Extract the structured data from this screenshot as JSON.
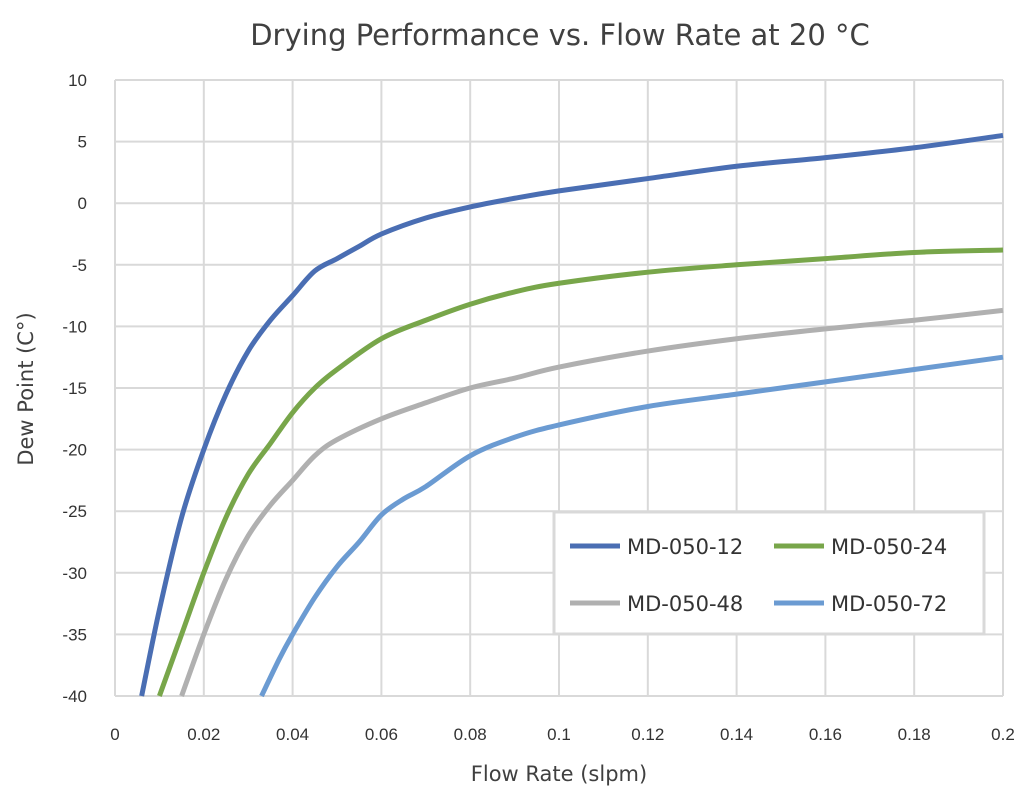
{
  "chart_data": {
    "type": "line",
    "title": "Drying Performance vs. Flow Rate at 20 °C",
    "xlabel": "Flow Rate (slpm)",
    "ylabel": "Dew Point (C°)",
    "xlim": [
      0,
      0.2
    ],
    "ylim": [
      -40,
      10
    ],
    "x_ticks": [
      0,
      0.02,
      0.04,
      0.06,
      0.08,
      0.1,
      0.12,
      0.14,
      0.16,
      0.18,
      0.2
    ],
    "x_tick_labels": [
      "0",
      "0.02",
      "0.04",
      "0.06",
      "0.08",
      "0.1",
      "0.12",
      "0.14",
      "0.16",
      "0.18",
      "0.2"
    ],
    "y_ticks": [
      10,
      5,
      0,
      -5,
      -10,
      -15,
      -20,
      -25,
      -30,
      -35,
      -40
    ],
    "y_tick_labels": [
      "10",
      "5",
      "0",
      "-5",
      "-10",
      "-15",
      "-20",
      "-25",
      "-30",
      "-35",
      "-40"
    ],
    "grid": true,
    "legend_position": "bottom-right",
    "series": [
      {
        "name": "MD-050-12",
        "color": "#4a6eb3",
        "points": [
          [
            0.006,
            -40
          ],
          [
            0.01,
            -33
          ],
          [
            0.015,
            -25.5
          ],
          [
            0.02,
            -20
          ],
          [
            0.025,
            -15.5
          ],
          [
            0.03,
            -12
          ],
          [
            0.035,
            -9.5
          ],
          [
            0.04,
            -7.5
          ],
          [
            0.045,
            -5.5
          ],
          [
            0.05,
            -4.5
          ],
          [
            0.055,
            -3.5
          ],
          [
            0.06,
            -2.5
          ],
          [
            0.07,
            -1.2
          ],
          [
            0.08,
            -0.3
          ],
          [
            0.09,
            0.4
          ],
          [
            0.1,
            1.0
          ],
          [
            0.12,
            2.0
          ],
          [
            0.14,
            3.0
          ],
          [
            0.16,
            3.7
          ],
          [
            0.18,
            4.5
          ],
          [
            0.2,
            5.5
          ]
        ]
      },
      {
        "name": "MD-050-24",
        "color": "#78a64a",
        "points": [
          [
            0.01,
            -40
          ],
          [
            0.015,
            -35
          ],
          [
            0.02,
            -30
          ],
          [
            0.025,
            -25.5
          ],
          [
            0.03,
            -22
          ],
          [
            0.035,
            -19.5
          ],
          [
            0.04,
            -17
          ],
          [
            0.045,
            -15
          ],
          [
            0.05,
            -13.5
          ],
          [
            0.06,
            -11
          ],
          [
            0.07,
            -9.5
          ],
          [
            0.08,
            -8.2
          ],
          [
            0.09,
            -7.2
          ],
          [
            0.1,
            -6.5
          ],
          [
            0.12,
            -5.6
          ],
          [
            0.14,
            -5.0
          ],
          [
            0.16,
            -4.5
          ],
          [
            0.18,
            -4.0
          ],
          [
            0.2,
            -3.8
          ]
        ]
      },
      {
        "name": "MD-050-48",
        "color": "#b0b0b0",
        "points": [
          [
            0.015,
            -40
          ],
          [
            0.02,
            -35
          ],
          [
            0.025,
            -30.5
          ],
          [
            0.03,
            -27
          ],
          [
            0.035,
            -24.5
          ],
          [
            0.04,
            -22.5
          ],
          [
            0.045,
            -20.5
          ],
          [
            0.05,
            -19.2
          ],
          [
            0.06,
            -17.5
          ],
          [
            0.07,
            -16.2
          ],
          [
            0.08,
            -15.0
          ],
          [
            0.09,
            -14.2
          ],
          [
            0.1,
            -13.3
          ],
          [
            0.12,
            -12.0
          ],
          [
            0.14,
            -11.0
          ],
          [
            0.16,
            -10.2
          ],
          [
            0.18,
            -9.5
          ],
          [
            0.2,
            -8.7
          ]
        ]
      },
      {
        "name": "MD-050-72",
        "color": "#6b9bd2",
        "points": [
          [
            0.033,
            -40
          ],
          [
            0.037,
            -37
          ],
          [
            0.04,
            -35
          ],
          [
            0.045,
            -32
          ],
          [
            0.05,
            -29.5
          ],
          [
            0.055,
            -27.5
          ],
          [
            0.06,
            -25.3
          ],
          [
            0.065,
            -24
          ],
          [
            0.07,
            -23
          ],
          [
            0.08,
            -20.5
          ],
          [
            0.09,
            -19
          ],
          [
            0.1,
            -18
          ],
          [
            0.12,
            -16.5
          ],
          [
            0.14,
            -15.5
          ],
          [
            0.16,
            -14.5
          ],
          [
            0.18,
            -13.5
          ],
          [
            0.2,
            -12.5
          ]
        ]
      }
    ]
  }
}
